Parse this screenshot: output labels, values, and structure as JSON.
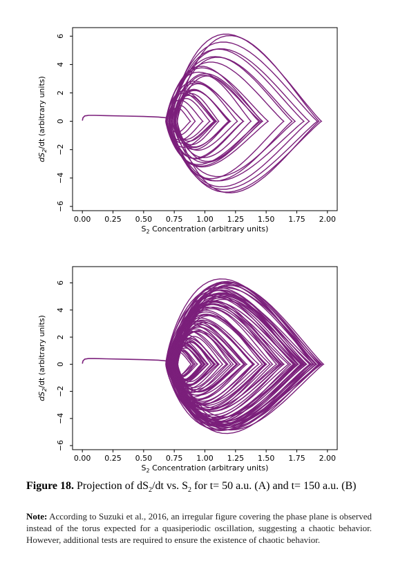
{
  "chart_data": [
    {
      "panel": "A",
      "type": "line",
      "xlabel_main": "S",
      "xlabel_sub": "2",
      "xlabel_rest": " Concentration (arbitrary units)",
      "ylabel_main": "dS",
      "ylabel_sub": "2",
      "ylabel_rest": "/dt (arbitrary units)",
      "xlim": [
        -0.08,
        2.08
      ],
      "ylim": [
        -6.3,
        6.6
      ],
      "xticks": [
        0.0,
        0.25,
        0.5,
        0.75,
        1.0,
        1.25,
        1.5,
        1.75,
        2.0
      ],
      "xtick_labels": [
        "0.00",
        "0.25",
        "0.50",
        "0.75",
        "1.00",
        "1.25",
        "1.50",
        "1.75",
        "2.00"
      ],
      "yticks": [
        -6,
        -4,
        -2,
        0,
        2,
        4,
        6
      ],
      "ytick_labels": [
        "−6",
        "−4",
        "−2",
        "0",
        "2",
        "4",
        "6"
      ],
      "line_color": "#7b1f7b",
      "transient": {
        "x": [
          0.0,
          0.005,
          0.02,
          0.05,
          0.1,
          0.2,
          0.35,
          0.5,
          0.62,
          0.68,
          0.7
        ],
        "y": [
          0.05,
          0.25,
          0.38,
          0.42,
          0.42,
          0.4,
          0.37,
          0.34,
          0.3,
          0.25,
          0.2
        ]
      },
      "orbit_envelope": {
        "x_min": 0.66,
        "x_max": 1.96,
        "y_min": -5.4,
        "y_max": 6.35
      },
      "loops": 28,
      "grid": false
    },
    {
      "panel": "B",
      "type": "line",
      "xlabel_main": "S",
      "xlabel_sub": "2",
      "xlabel_rest": " Concentration (arbitrary units)",
      "ylabel_main": "dS",
      "ylabel_sub": "2",
      "ylabel_rest": "/dt (arbitrary units)",
      "xlim": [
        -0.08,
        2.08
      ],
      "ylim": [
        -6.3,
        7.2
      ],
      "xticks": [
        0.0,
        0.25,
        0.5,
        0.75,
        1.0,
        1.25,
        1.5,
        1.75,
        2.0
      ],
      "xtick_labels": [
        "0.00",
        "0.25",
        "0.50",
        "0.75",
        "1.00",
        "1.25",
        "1.50",
        "1.75",
        "2.00"
      ],
      "yticks": [
        -6,
        -4,
        -2,
        0,
        2,
        4,
        6
      ],
      "ytick_labels": [
        "−6",
        "−4",
        "−2",
        "0",
        "2",
        "4",
        "6"
      ],
      "line_color": "#7b1f7b",
      "transient": {
        "x": [
          0.0,
          0.005,
          0.02,
          0.05,
          0.1,
          0.2,
          0.35,
          0.5,
          0.62,
          0.68,
          0.7
        ],
        "y": [
          0.05,
          0.25,
          0.38,
          0.42,
          0.42,
          0.4,
          0.37,
          0.34,
          0.3,
          0.25,
          0.2
        ]
      },
      "orbit_envelope": {
        "x_min": 0.66,
        "x_max": 1.98,
        "y_min": -5.5,
        "y_max": 6.6
      },
      "loops": 80,
      "grid": false
    }
  ],
  "caption": {
    "label": "Figure 18.",
    "part1": " Projection of dS",
    "sub1": "2",
    "part2": "/dt vs. S",
    "sub2": "2",
    "part3": " for t= 50 a.u. (A) and t= 150 a.u. (B)"
  },
  "note": {
    "label": "Note:",
    "text": " According to Suzuki et al., 2016, an irregular figure covering the phase plane is observed instead of the torus expected for a quasiperiodic oscillation, suggesting a chaotic behavior. However, additional tests are required to ensure the existence of chaotic behavior."
  }
}
